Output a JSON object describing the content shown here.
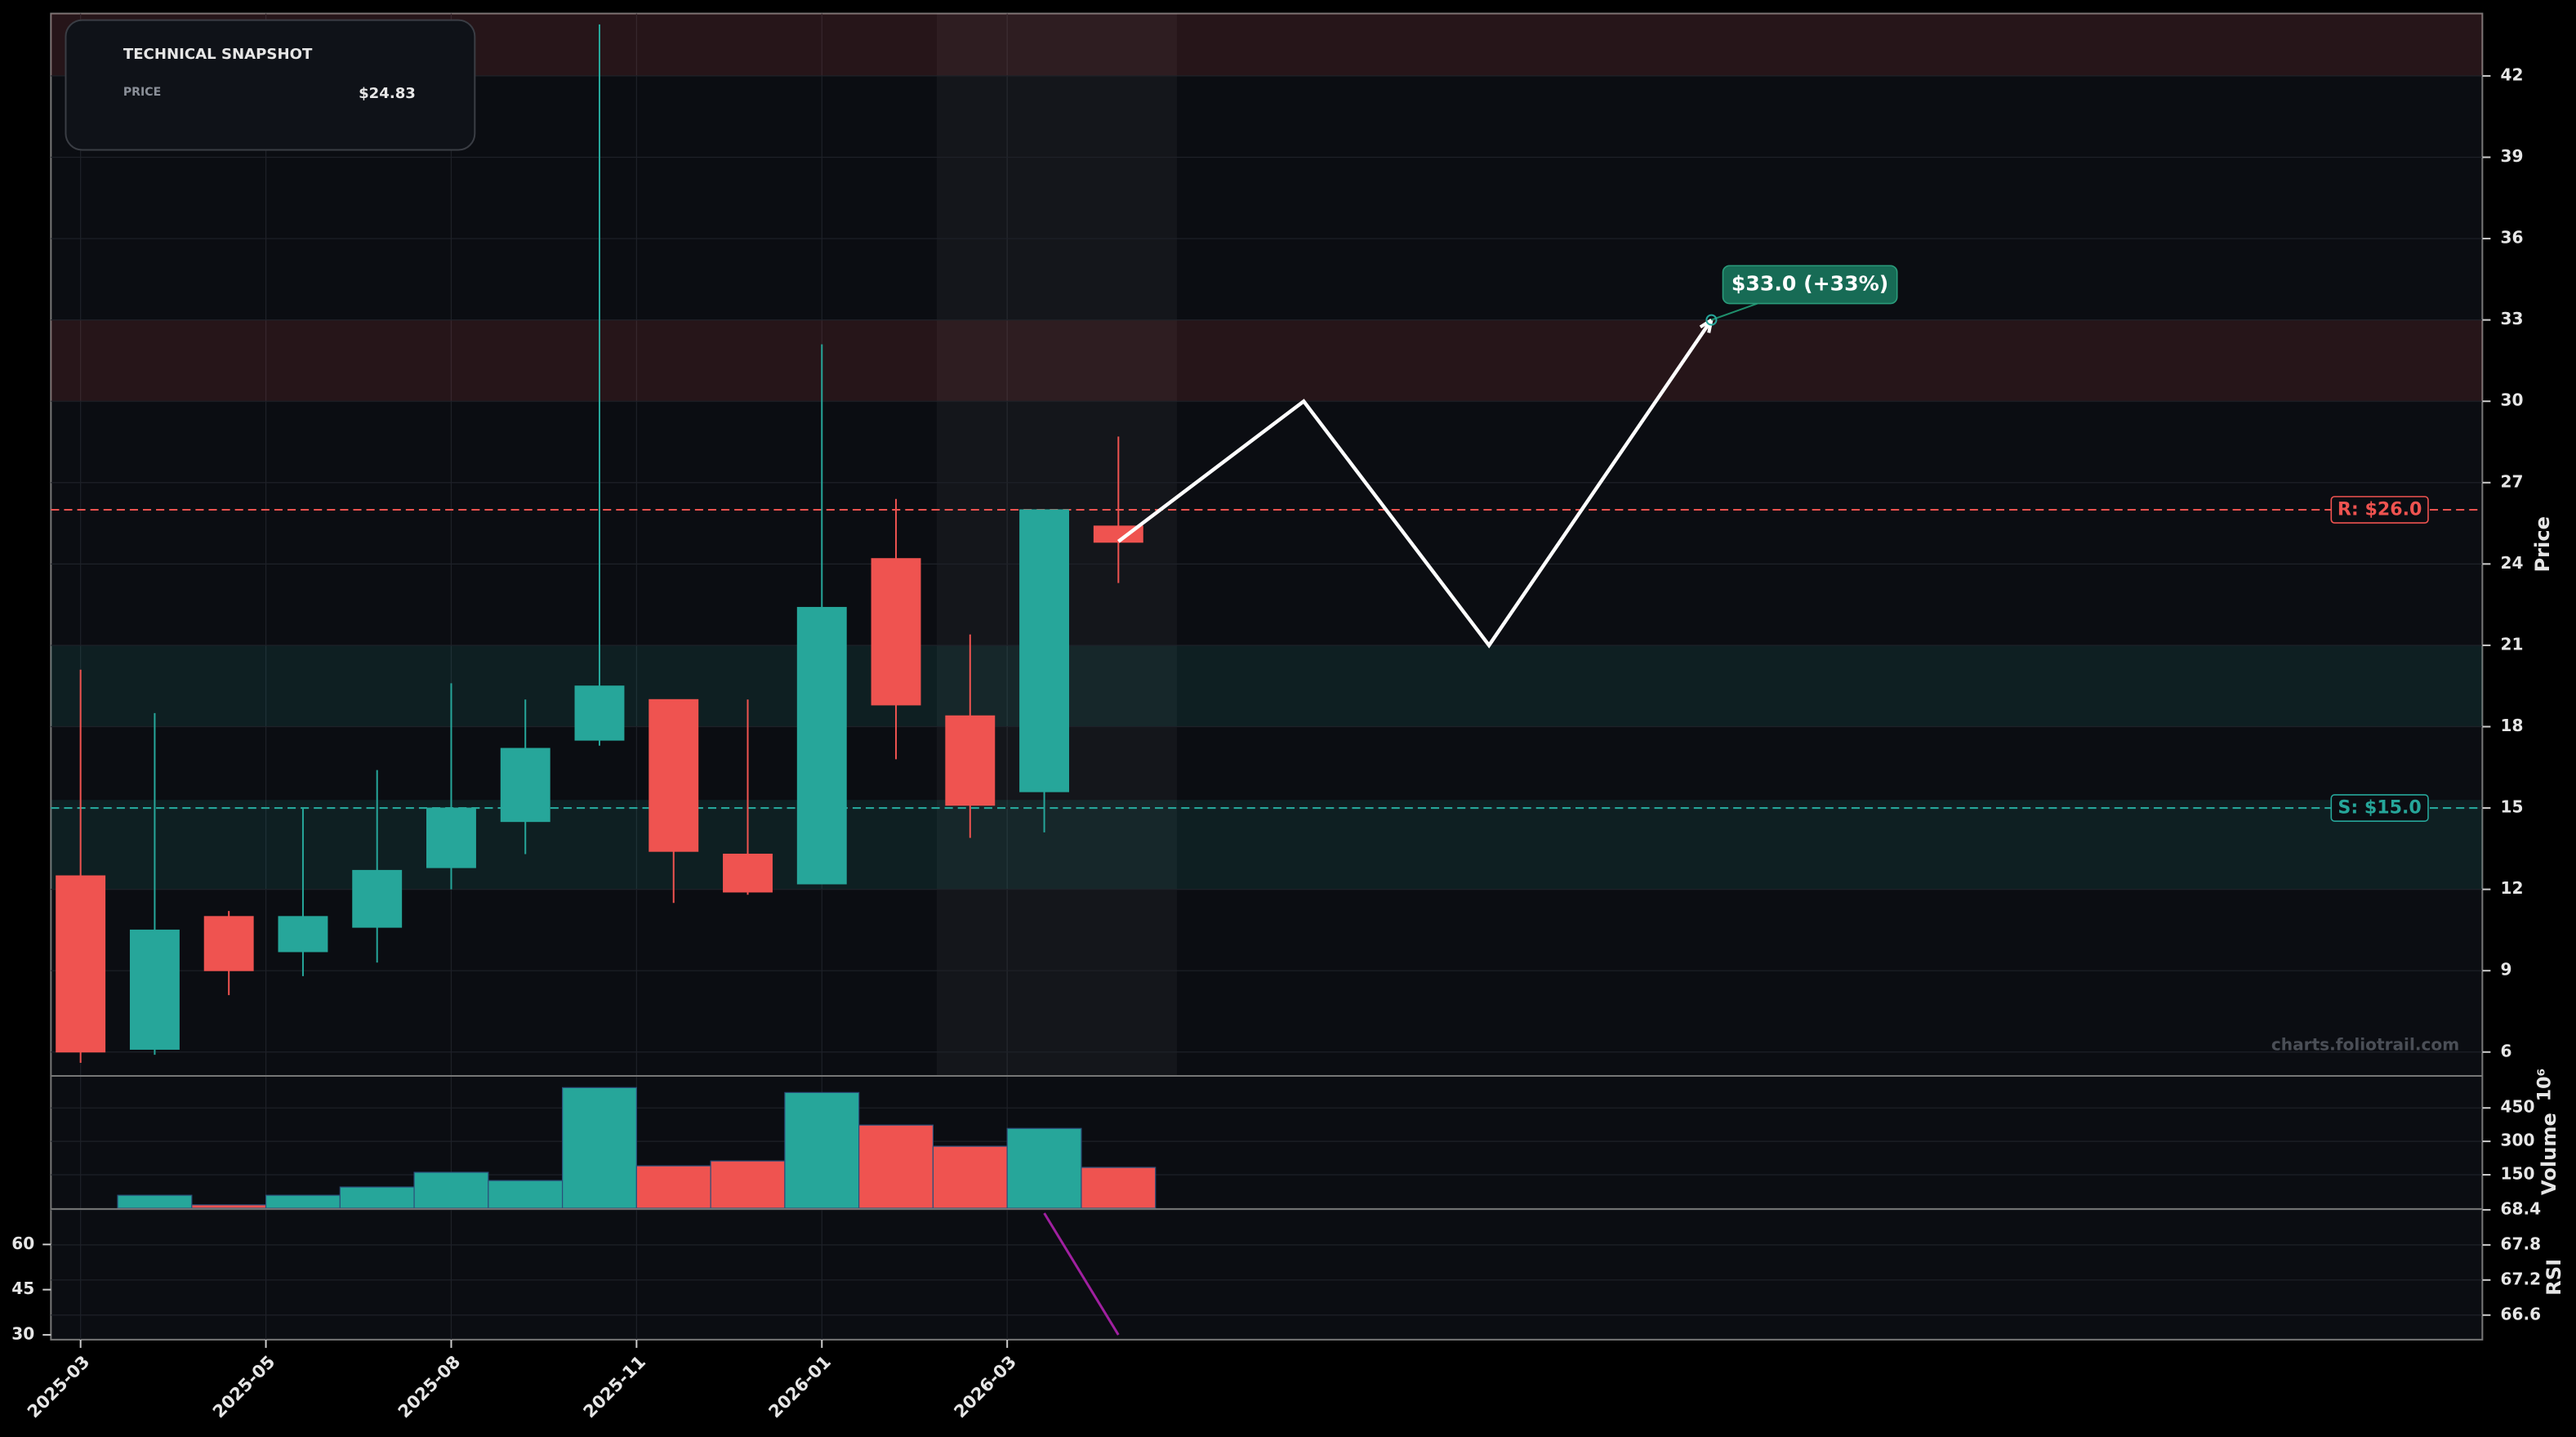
{
  "chart_data": [
    {
      "type": "candlestick",
      "x": [
        0,
        1,
        2,
        3,
        4,
        5,
        6,
        7,
        8,
        9,
        10,
        11,
        12,
        13,
        14
      ],
      "open": [
        12.5,
        6.1,
        11.0,
        9.7,
        10.6,
        12.8,
        14.5,
        17.5,
        19.0,
        13.3,
        12.2,
        24.2,
        18.4,
        15.6,
        25.4
      ],
      "high": [
        20.1,
        18.5,
        11.2,
        15.0,
        16.4,
        19.6,
        19.0,
        43.9,
        19.0,
        19.0,
        32.1,
        26.4,
        21.4,
        26.0,
        28.7
      ],
      "low": [
        5.6,
        5.9,
        8.1,
        8.8,
        9.3,
        12.0,
        13.3,
        17.3,
        11.5,
        11.8,
        12.2,
        16.8,
        13.9,
        14.1,
        23.3
      ],
      "close": [
        6.0,
        10.5,
        9.0,
        11.0,
        12.7,
        15.0,
        17.2,
        19.5,
        13.4,
        11.9,
        22.4,
        18.8,
        15.1,
        26.0,
        24.8
      ],
      "up_color": "#26a69a",
      "down_color": "#ef5350",
      "xlim": [
        -0.4,
        32.4
      ],
      "xticks": [
        {
          "value": 0,
          "label": "2025-03"
        },
        {
          "value": 2.5,
          "label": "2025-05"
        },
        {
          "value": 5,
          "label": "2025-08"
        },
        {
          "value": 7.5,
          "label": "2025-11"
        },
        {
          "value": 10,
          "label": "2026-01"
        },
        {
          "value": 12.5,
          "label": "2026-03"
        }
      ],
      "ylim": [
        5.15,
        44.3
      ],
      "yticks": [
        6,
        9,
        12,
        15,
        18,
        21,
        24,
        27,
        30,
        33,
        36,
        39,
        42
      ],
      "ylabel": "Price",
      "grid": true,
      "zones": [
        {
          "from": 42,
          "to": 45,
          "color": "#ef5350"
        },
        {
          "from": 30,
          "to": 33,
          "color": "#ef5350"
        },
        {
          "from": 18,
          "to": 21,
          "color": "#26a69a"
        },
        {
          "from": 12,
          "to": 15.3,
          "color": "#26a69a"
        }
      ],
      "resistance": {
        "value": 26,
        "label": "R: $26.0",
        "color": "#ef5350"
      },
      "support": {
        "value": 15,
        "label": "S: $15.0",
        "color": "#26a69a"
      },
      "highlight": [
        11.55,
        14.79
      ],
      "projection": {
        "x": [
          14,
          16.5,
          19,
          22
        ],
        "values": [
          24.83,
          30,
          21,
          33
        ],
        "color": "#ffffff"
      },
      "target_label": "$33.0 (+33%)",
      "watermark": "charts.foliotrail.com",
      "snapshot": {
        "title": "TECHNICAL SNAPSHOT",
        "price_label": "PRICE",
        "price_value": "$24.83"
      }
    },
    {
      "type": "bar",
      "x": [
        0,
        1,
        2,
        3,
        4,
        5,
        6,
        7,
        8,
        9,
        10,
        11,
        12,
        13,
        14
      ],
      "values": [
        0,
        58,
        15,
        58,
        95,
        161,
        124,
        541,
        190,
        212,
        519,
        373,
        278,
        358,
        183
      ],
      "colors": [
        "#ef5350",
        "#26a69a",
        "#ef5350",
        "#26a69a",
        "#26a69a",
        "#26a69a",
        "#26a69a",
        "#26a69a",
        "#ef5350",
        "#ef5350",
        "#26a69a",
        "#ef5350",
        "#ef5350",
        "#26a69a",
        "#ef5350"
      ],
      "ylim": [
        0,
        590
      ],
      "yticks": [
        150,
        300,
        450
      ],
      "ylabel": "Volume",
      "multiplier_label": "10⁶"
    },
    {
      "type": "line",
      "x": [
        0,
        1,
        2,
        3,
        4,
        5,
        6,
        7,
        8,
        9,
        10,
        11,
        12,
        13,
        14
      ],
      "values": [
        null,
        null,
        null,
        null,
        null,
        null,
        null,
        null,
        null,
        null,
        null,
        null,
        null,
        70.4,
        30
      ],
      "color": "#a020a0",
      "ylim": [
        28.4,
        71.5
      ],
      "yticks": [
        30,
        45,
        60
      ],
      "y2lim": [
        66.18,
        68.4
      ],
      "y2ticks": [
        66.6,
        67.2,
        67.8,
        68.4
      ],
      "ylabel": "RSI"
    }
  ]
}
